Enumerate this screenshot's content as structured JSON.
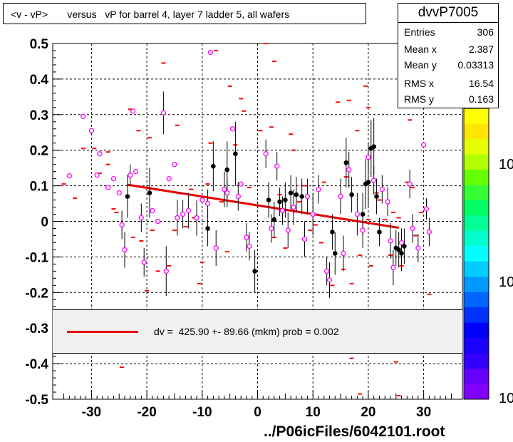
{
  "title": "<v - vP>       versus   vP for barrel 4, layer 7 ladder 5, all wafers",
  "stats": {
    "name": "dvvP7005",
    "rows": [
      {
        "label": "Entries",
        "value": "306"
      },
      {
        "label": "Mean x",
        "value": "2.387"
      },
      {
        "label": "Mean y",
        "value": "0.03313"
      },
      {
        "label": "RMS x",
        "value": "16.54"
      },
      {
        "label": "RMS y",
        "value": "0.163"
      }
    ]
  },
  "fit_label": "dv =  425.90 +- 89.66 (mkm) prob = 0.002",
  "file_label": "../P06icFiles/6042101.root",
  "colorbar_labels": [
    "10",
    "10",
    "10"
  ],
  "colors": {
    "fit": "#e00000",
    "profile": "#000000",
    "marker": "#ff00ff",
    "hist": "#ff0000"
  },
  "chart_data": {
    "type": "scatter",
    "xlim": [
      -37,
      37
    ],
    "ylim": [
      -0.5,
      0.5
    ],
    "xticks": [
      -30,
      -20,
      -10,
      0,
      10,
      20,
      30
    ],
    "yticks": [
      -0.5,
      -0.4,
      -0.3,
      -0.2,
      -0.1,
      0,
      0.1,
      0.2,
      0.3,
      0.4,
      0.5
    ],
    "xtick_labels": [
      "-30",
      "-20",
      "-10",
      "0",
      "10",
      "20",
      "30"
    ],
    "ytick_labels": [
      "-0.5",
      "-0.4",
      "-0.3",
      "-0.2",
      "-0.1",
      "0",
      "0.1",
      "0.2",
      "0.3",
      "0.4",
      "0.5"
    ],
    "grid": true,
    "fit_line": {
      "x": [
        -23.5,
        25.5
      ],
      "y": [
        0.103,
        -0.018
      ]
    },
    "profile_black": [
      [
        -23.5,
        0.07,
        0.06
      ],
      [
        -19.5,
        0.08,
        0.07
      ],
      [
        -9,
        -0.02,
        0.05
      ],
      [
        -8,
        0.155,
        0.07
      ],
      [
        -5.5,
        0.145,
        0.08
      ],
      [
        -4,
        0.19,
        0.09
      ],
      [
        -0.5,
        -0.14,
        0.06
      ],
      [
        2,
        0.06,
        0.05
      ],
      [
        3,
        0.005,
        0.05
      ],
      [
        4,
        0.055,
        0.04
      ],
      [
        5,
        0.06,
        0.05
      ],
      [
        6,
        0.08,
        0.05
      ],
      [
        7,
        0.075,
        0.05
      ],
      [
        8,
        0.07,
        0.05
      ],
      [
        13.5,
        -0.03,
        0.05
      ],
      [
        14,
        -0.09,
        0.06
      ],
      [
        16,
        0.165,
        0.07
      ],
      [
        17,
        0.075,
        0.05
      ],
      [
        19,
        0.02,
        0.06
      ],
      [
        19.5,
        0.105,
        0.07
      ],
      [
        20,
        0.11,
        0.07
      ],
      [
        20.5,
        0.205,
        0.08
      ],
      [
        21,
        0.21,
        0.08
      ],
      [
        21.5,
        0.07,
        0.05
      ],
      [
        22,
        -0.03,
        0.04
      ],
      [
        25,
        -0.075,
        0.05
      ],
      [
        25.5,
        -0.08,
        0.05
      ],
      [
        26,
        -0.09,
        0.05
      ],
      [
        26.5,
        -0.07,
        0.05
      ]
    ],
    "profile_magenta": [
      [
        -34,
        0.128,
        0
      ],
      [
        -31.5,
        0.295,
        0
      ],
      [
        -30,
        0.255,
        0
      ],
      [
        -29,
        0.13,
        0
      ],
      [
        -28.5,
        0.19,
        0
      ],
      [
        -27,
        0.095,
        0
      ],
      [
        -26,
        0.12,
        0
      ],
      [
        -25,
        0.08,
        0
      ],
      [
        -24.5,
        -0.01,
        0.04
      ],
      [
        -24,
        -0.08,
        0.05
      ],
      [
        -23,
        0.13,
        0.03
      ],
      [
        -22.5,
        0.31,
        0
      ],
      [
        -22,
        0.14,
        0
      ],
      [
        -21,
        0.01,
        0.04
      ],
      [
        -20.5,
        -0.115,
        0.04
      ],
      [
        -19,
        0.03,
        0
      ],
      [
        -18,
        0.0,
        0
      ],
      [
        -17,
        0.305,
        0.06
      ],
      [
        -16.5,
        -0.14,
        0.07
      ],
      [
        -16,
        0.12,
        0
      ],
      [
        -15,
        0.16,
        0
      ],
      [
        -14.5,
        0.01,
        0.05
      ],
      [
        -13.5,
        0.02,
        0.04
      ],
      [
        -12.5,
        0.03,
        0.05
      ],
      [
        -11,
        0.01,
        0.05
      ],
      [
        -10,
        0.06,
        0
      ],
      [
        -9,
        0.05,
        0.04
      ],
      [
        -8.5,
        0.475,
        0
      ],
      [
        -7.5,
        -0.075,
        0.05
      ],
      [
        -6,
        0.09,
        0.05
      ],
      [
        -5.5,
        0.08,
        0.04
      ],
      [
        -4.5,
        0.26,
        0
      ],
      [
        -3.5,
        0.07,
        0.04
      ],
      [
        -3,
        0.105,
        0
      ],
      [
        -2,
        -0.045,
        0.04
      ],
      [
        -1.5,
        -0.07,
        0.04
      ],
      [
        1.5,
        0.19,
        0.04
      ],
      [
        2.5,
        -0.02,
        0.04
      ],
      [
        3.5,
        0.155,
        0.04
      ],
      [
        4.5,
        0.03,
        0.04
      ],
      [
        5.5,
        -0.025,
        0.05
      ],
      [
        6.5,
        0.04,
        0.05
      ],
      [
        8.5,
        -0.05,
        0.05
      ],
      [
        9,
        0.07,
        0.05
      ],
      [
        10,
        0.02,
        0.06
      ],
      [
        11,
        0.09,
        0.04
      ],
      [
        12.5,
        -0.14,
        0.04
      ],
      [
        13,
        -0.165,
        0.05
      ],
      [
        15,
        0.07,
        0.05
      ],
      [
        15.5,
        -0.09,
        0.05
      ],
      [
        16.5,
        0.145,
        0.05
      ],
      [
        18,
        0.02,
        0.06
      ],
      [
        19,
        -0.025,
        0.05
      ],
      [
        20,
        0.18,
        0.04
      ],
      [
        21,
        0.115,
        0.04
      ],
      [
        22.5,
        0.09,
        0.04
      ],
      [
        23.5,
        0.055,
        0.04
      ],
      [
        24,
        -0.055,
        0.05
      ],
      [
        24.5,
        -0.13,
        0.05
      ],
      [
        26,
        -0.06,
        0.04
      ],
      [
        27.5,
        0.105,
        0.04
      ],
      [
        28,
        -0.02,
        0.04
      ],
      [
        29,
        -0.075,
        0.04
      ],
      [
        30,
        0.215,
        0
      ],
      [
        30.5,
        0.035,
        0.03
      ],
      [
        31,
        -0.03,
        0.04
      ]
    ],
    "hist_marks": [
      [
        -35,
        0.105
      ],
      [
        -33,
        0.065
      ],
      [
        -31.5,
        0.205
      ],
      [
        -29.5,
        0.205
      ],
      [
        -28.5,
        0.135
      ],
      [
        -27,
        0.16
      ],
      [
        -26,
        0.035
      ],
      [
        -25.5,
        0.025
      ],
      [
        -23,
        0.315
      ],
      [
        -22.5,
        -0.045
      ],
      [
        -21.5,
        0.255
      ],
      [
        -21,
        -0.055
      ],
      [
        -20,
        -0.195
      ],
      [
        -19.5,
        0.235
      ],
      [
        -19,
        -0.025
      ],
      [
        -18,
        -0.14
      ],
      [
        -17,
        0.445
      ],
      [
        -16,
        -0.125
      ],
      [
        -15,
        -0.025
      ],
      [
        -14.5,
        0.27
      ],
      [
        -13,
        -0.015
      ],
      [
        -12,
        0.09
      ],
      [
        -11.5,
        0.01
      ],
      [
        -10.5,
        -0.175
      ],
      [
        -10,
        -0.115
      ],
      [
        -9,
        0.105
      ],
      [
        -8.5,
        0.22
      ],
      [
        -7.5,
        0.48
      ],
      [
        -6.5,
        0.055
      ],
      [
        -5.5,
        -0.085
      ],
      [
        -5,
        0.38
      ],
      [
        -4,
        0.215
      ],
      [
        -3,
        0.345
      ],
      [
        -2.5,
        0.31
      ],
      [
        -1.5,
        0.095
      ],
      [
        -0.5,
        -0.25
      ],
      [
        0.5,
        0.255
      ],
      [
        1.5,
        0.5
      ],
      [
        2.5,
        0.265
      ],
      [
        3,
        -0.045
      ],
      [
        4,
        0.075
      ],
      [
        5,
        -0.075
      ],
      [
        6,
        0.245
      ],
      [
        6.5,
        0.2
      ],
      [
        7.5,
        0.055
      ],
      [
        8.5,
        0.1
      ],
      [
        9.5,
        -0.025
      ],
      [
        10.5,
        -0.01
      ],
      [
        11.5,
        -0.06
      ],
      [
        12,
        0.11
      ],
      [
        13.5,
        -0.18
      ],
      [
        14.5,
        0.335
      ],
      [
        15.5,
        -0.135
      ],
      [
        16,
        0.125
      ],
      [
        16.5,
        0.34
      ],
      [
        17,
        -0.175
      ],
      [
        18,
        0.255
      ],
      [
        18.5,
        -0.095
      ],
      [
        19.5,
        0.38
      ],
      [
        20,
        0.005
      ],
      [
        20.5,
        -0.125
      ],
      [
        21.5,
        0.08
      ],
      [
        22,
        0.06
      ],
      [
        23,
        0.005
      ],
      [
        24,
        -0.095
      ],
      [
        24.5,
        0.025
      ],
      [
        25,
        -0.395
      ],
      [
        25.5,
        0.01
      ],
      [
        26,
        -0.125
      ],
      [
        27,
        0.11
      ],
      [
        27.5,
        0.285
      ],
      [
        28,
        0.095
      ],
      [
        28.5,
        -0.04
      ],
      [
        29.5,
        0.025
      ],
      [
        30,
        0.42
      ],
      [
        31,
        -0.205
      ],
      [
        -24.5,
        -0.41
      ],
      [
        17,
        -0.385
      ],
      [
        18.5,
        -0.485
      ],
      [
        25.5,
        -0.49
      ],
      [
        3,
        0.45
      ],
      [
        20,
        0.32
      ],
      [
        -27,
        0.195
      ]
    ]
  }
}
